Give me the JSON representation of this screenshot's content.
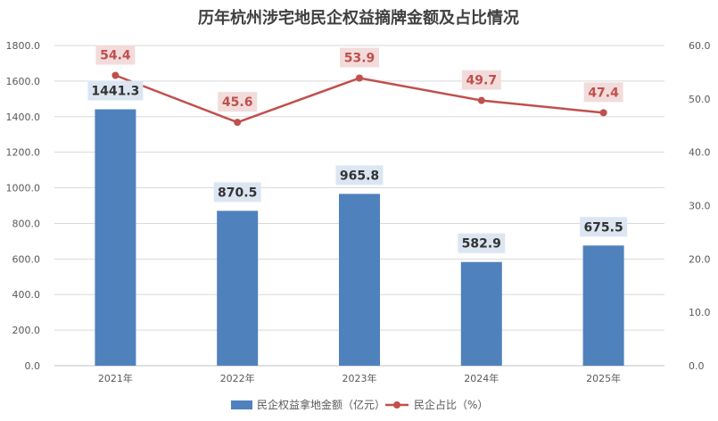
{
  "chart_data": {
    "type": "bar",
    "title": "历年杭州涉宅地民企权益摘牌金额及占比情况",
    "categories": [
      "2021年",
      "2022年",
      "2023年",
      "2024年",
      "2025年"
    ],
    "series": [
      {
        "name": "民企权益拿地金额（亿元）",
        "type": "bar",
        "axis": "left",
        "color": "#4f81bd",
        "values": [
          1441.3,
          870.5,
          965.8,
          582.9,
          675.5
        ],
        "labels": [
          "1441.3",
          "870.5",
          "965.8",
          "582.9",
          "675.5"
        ]
      },
      {
        "name": "民企占比（%）",
        "type": "line",
        "axis": "right",
        "color": "#c0504d",
        "values": [
          54.4,
          45.6,
          53.9,
          49.7,
          47.4
        ],
        "labels": [
          "54.4",
          "45.6",
          "53.9",
          "49.7",
          "47.4"
        ]
      }
    ],
    "y_left": {
      "min": 0,
      "max": 1800,
      "ticks": [
        "0.0",
        "200.0",
        "400.0",
        "600.0",
        "800.0",
        "1000.0",
        "1200.0",
        "1400.0",
        "1600.0",
        "1800.0"
      ]
    },
    "y_right": {
      "min": 0,
      "max": 60,
      "ticks": [
        "0.0",
        "10.0",
        "20.0",
        "30.0",
        "40.0",
        "50.0",
        "60.0"
      ]
    },
    "grid": true,
    "legend_position": "bottom",
    "label_bg_bar": "#dce6f2",
    "label_bg_line": "#f2dcdb"
  }
}
